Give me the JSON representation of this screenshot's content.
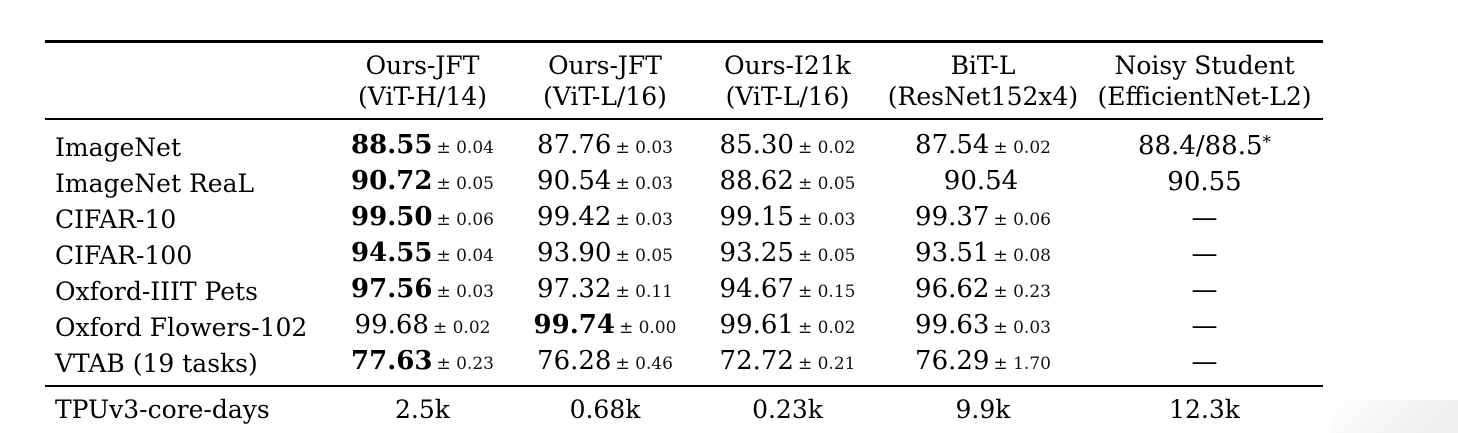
{
  "table": {
    "columns": [
      {
        "name": "Ours-JFT",
        "sub": "(ViT-H/14)"
      },
      {
        "name": "Ours-JFT",
        "sub": "(ViT-L/16)"
      },
      {
        "name": "Ours-I21k",
        "sub": "(ViT-L/16)"
      },
      {
        "name": "BiT-L",
        "sub": "(ResNet152x4)"
      },
      {
        "name": "Noisy Student",
        "sub": "(EfficientNet-L2)"
      }
    ],
    "rows": [
      {
        "label": "ImageNet",
        "cells": [
          {
            "v": "88.55",
            "pm": "± 0.04",
            "bold": true
          },
          {
            "v": "87.76",
            "pm": "± 0.03"
          },
          {
            "v": "85.30",
            "pm": "± 0.02"
          },
          {
            "v": "87.54",
            "pm": "± 0.02"
          },
          {
            "v": "88.4/88.5",
            "sup": "*"
          }
        ]
      },
      {
        "label": "ImageNet ReaL",
        "cells": [
          {
            "v": "90.72",
            "pm": "± 0.05",
            "bold": true
          },
          {
            "v": "90.54",
            "pm": "± 0.03"
          },
          {
            "v": "88.62",
            "pm": "± 0.05"
          },
          {
            "v": "90.54"
          },
          {
            "v": "90.55"
          }
        ]
      },
      {
        "label": "CIFAR-10",
        "cells": [
          {
            "v": "99.50",
            "pm": "± 0.06",
            "bold": true
          },
          {
            "v": "99.42",
            "pm": "± 0.03"
          },
          {
            "v": "99.15",
            "pm": "± 0.03"
          },
          {
            "v": "99.37",
            "pm": "± 0.06"
          },
          {
            "v": "—"
          }
        ]
      },
      {
        "label": "CIFAR-100",
        "cells": [
          {
            "v": "94.55",
            "pm": "± 0.04",
            "bold": true
          },
          {
            "v": "93.90",
            "pm": "± 0.05"
          },
          {
            "v": "93.25",
            "pm": "± 0.05"
          },
          {
            "v": "93.51",
            "pm": "± 0.08"
          },
          {
            "v": "—"
          }
        ]
      },
      {
        "label": "Oxford-IIIT Pets",
        "cells": [
          {
            "v": "97.56",
            "pm": "± 0.03",
            "bold": true
          },
          {
            "v": "97.32",
            "pm": "± 0.11"
          },
          {
            "v": "94.67",
            "pm": "± 0.15"
          },
          {
            "v": "96.62",
            "pm": "± 0.23"
          },
          {
            "v": "—"
          }
        ]
      },
      {
        "label": "Oxford Flowers-102",
        "cells": [
          {
            "v": "99.68",
            "pm": "± 0.02"
          },
          {
            "v": "99.74",
            "pm": "± 0.00",
            "bold": true
          },
          {
            "v": "99.61",
            "pm": "± 0.02"
          },
          {
            "v": "99.63",
            "pm": "± 0.03"
          },
          {
            "v": "—"
          }
        ]
      },
      {
        "label": "VTAB (19 tasks)",
        "cells": [
          {
            "v": "77.63",
            "pm": "± 0.23",
            "bold": true
          },
          {
            "v": "76.28",
            "pm": "± 0.46"
          },
          {
            "v": "72.72",
            "pm": "± 0.21"
          },
          {
            "v": "76.29",
            "pm": "± 1.70"
          },
          {
            "v": "—"
          }
        ]
      }
    ],
    "footer": {
      "label": "TPUv3-core-days",
      "cells": [
        "2.5k",
        "0.68k",
        "0.23k",
        "9.9k",
        "12.3k"
      ]
    }
  },
  "colors": {
    "text": "#000000",
    "pm_text": "#111111",
    "rule": "#000000",
    "background": "#ffffff"
  }
}
